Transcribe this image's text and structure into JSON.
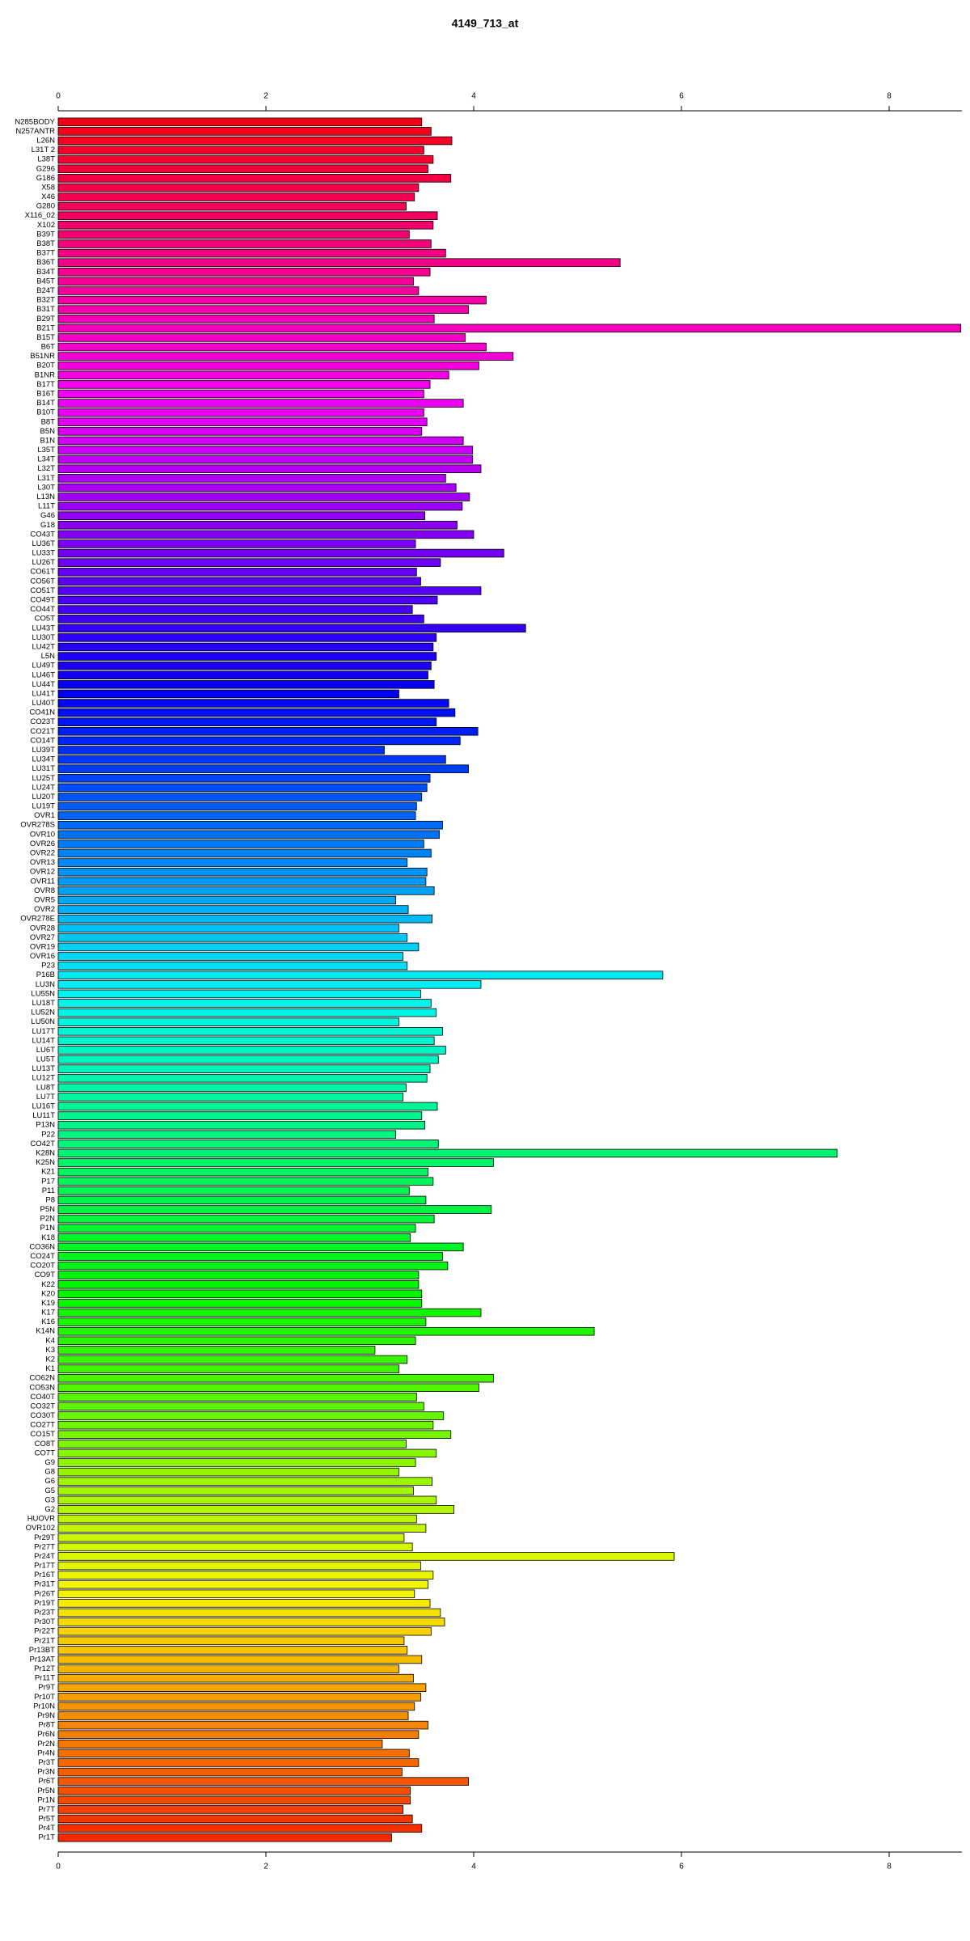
{
  "chart_data": {
    "type": "bar",
    "orientation": "horizontal",
    "title": "4149_713_at",
    "categories": [
      "N285BODY",
      "N257ANTR",
      "L26N",
      "L31T 2",
      "L38T",
      "G296",
      "G186",
      "X58",
      "X46",
      "G280",
      "X116_02",
      "X102",
      "B39T",
      "B38T",
      "B37T",
      "B36T",
      "B34T",
      "B45T",
      "B24T",
      "B32T",
      "B31T",
      "B29T",
      "B21T",
      "B15T",
      "B6T",
      "B51NR",
      "B20T",
      "B1NR",
      "B17T",
      "B16T",
      "B14T",
      "B10T",
      "B8T",
      "B5N",
      "B1N",
      "L35T",
      "L34T",
      "L32T",
      "L31T",
      "L30T",
      "L13N",
      "L11T",
      "G46",
      "G18",
      "CO43T",
      "LU36T",
      "LU33T",
      "LU26T",
      "CO61T",
      "CO56T",
      "CO51T",
      "CO49T",
      "CO44T",
      "CO5T",
      "LU43T",
      "LU30T",
      "LU42T",
      "L5N",
      "LU49T",
      "LU46T",
      "LU44T",
      "LU41T",
      "LU40T",
      "CO41N",
      "CO23T",
      "CO21T",
      "CO14T",
      "LU39T",
      "LU34T",
      "LU31T",
      "LU25T",
      "LU24T",
      "LU20T",
      "LU19T",
      "OVR1",
      "OVR278S",
      "OVR10",
      "OVR26",
      "OVR22",
      "OVR13",
      "OVR12",
      "OVR11",
      "OVR8",
      "OVR5",
      "OVR2",
      "OVR278E",
      "OVR28",
      "OVR27",
      "OVR19",
      "OVR16",
      "P23",
      "P16B",
      "LU3N",
      "LU55N",
      "LU18T",
      "LU52N",
      "LU50N",
      "LU17T",
      "LU14T",
      "LU6T",
      "LU5T",
      "LU13T",
      "LU12T",
      "LU8T",
      "LU7T",
      "LU16T",
      "LU11T",
      "P13N",
      "P22",
      "CO42T",
      "K28N",
      "K25N",
      "K21",
      "P17",
      "P11",
      "P8",
      "P5N",
      "P2N",
      "P1N",
      "K18",
      "CO36N",
      "CO24T",
      "CO20T",
      "CO9T",
      "K22",
      "K20",
      "K19",
      "K17",
      "K16",
      "K14N",
      "K4",
      "K3",
      "K2",
      "K1",
      "CO62N",
      "CO53N",
      "CO40T",
      "CO32T",
      "CO30T",
      "CO27T",
      "CO15T",
      "CO8T",
      "CO7T",
      "G9",
      "G8",
      "G6",
      "G5",
      "G3",
      "G2",
      "HUOVR",
      "OVR102",
      "Pr29T",
      "Pr27T",
      "Pr24T",
      "Pr17T",
      "Pr16T",
      "Pr31T",
      "Pr26T",
      "Pr19T",
      "Pr23T",
      "Pr30T",
      "Pr22T",
      "Pr21T",
      "Pr13BT",
      "Pr13AT",
      "Pr12T",
      "Pr11T",
      "Pr9T",
      "Pr10T",
      "Pr10N",
      "Pr9N",
      "Pr8T",
      "Pr6N",
      "Pr2N",
      "Pr4N",
      "Pr3T",
      "Pr3N",
      "Pr6T",
      "Pr5N",
      "Pr1N",
      "Pr7T",
      "Pr5T",
      "Pr4T",
      "Pr1T"
    ],
    "values": [
      3.5,
      3.59,
      3.79,
      3.52,
      3.61,
      3.56,
      3.78,
      3.47,
      3.43,
      3.35,
      3.65,
      3.61,
      3.38,
      3.59,
      3.73,
      5.41,
      3.58,
      3.42,
      3.47,
      4.12,
      3.95,
      3.62,
      8.69,
      3.92,
      4.12,
      4.38,
      4.05,
      3.76,
      3.58,
      3.52,
      3.9,
      3.52,
      3.55,
      3.5,
      3.9,
      3.99,
      3.99,
      4.07,
      3.73,
      3.83,
      3.96,
      3.89,
      3.53,
      3.84,
      4.0,
      3.44,
      4.29,
      3.68,
      3.45,
      3.49,
      4.07,
      3.65,
      3.41,
      3.52,
      4.5,
      3.64,
      3.61,
      3.64,
      3.59,
      3.56,
      3.62,
      3.28,
      3.76,
      3.82,
      3.64,
      4.04,
      3.87,
      3.14,
      3.73,
      3.95,
      3.58,
      3.55,
      3.5,
      3.45,
      3.44,
      3.7,
      3.67,
      3.52,
      3.59,
      3.36,
      3.55,
      3.54,
      3.62,
      3.25,
      3.37,
      3.6,
      3.28,
      3.36,
      3.47,
      3.32,
      3.36,
      5.82,
      4.07,
      3.49,
      3.59,
      3.64,
      3.28,
      3.7,
      3.62,
      3.73,
      3.66,
      3.58,
      3.55,
      3.35,
      3.32,
      3.65,
      3.5,
      3.53,
      3.25,
      3.66,
      7.5,
      4.19,
      3.56,
      3.61,
      3.38,
      3.54,
      4.17,
      3.62,
      3.44,
      3.39,
      3.9,
      3.7,
      3.75,
      3.47,
      3.47,
      3.5,
      3.5,
      4.07,
      3.54,
      5.16,
      3.44,
      3.05,
      3.36,
      3.28,
      4.19,
      4.05,
      3.45,
      3.52,
      3.71,
      3.61,
      3.78,
      3.35,
      3.64,
      3.44,
      3.28,
      3.6,
      3.42,
      3.64,
      3.81,
      3.45,
      3.54,
      3.33,
      3.41,
      5.93,
      3.49,
      3.61,
      3.56,
      3.43,
      3.58,
      3.68,
      3.72,
      3.59,
      3.33,
      3.36,
      3.5,
      3.28,
      3.42,
      3.54,
      3.49,
      3.43,
      3.37,
      3.56,
      3.47,
      3.12,
      3.38,
      3.47,
      3.31,
      3.95,
      3.39,
      3.39,
      3.32,
      3.41,
      3.5,
      3.21
    ],
    "color": {
      "hue": [
        355,
        10
      ],
      "saturation": 100,
      "lightness": 48
    },
    "xlim": [
      0,
      8.7
    ],
    "xticks": [
      0,
      2,
      4,
      6,
      8
    ]
  }
}
